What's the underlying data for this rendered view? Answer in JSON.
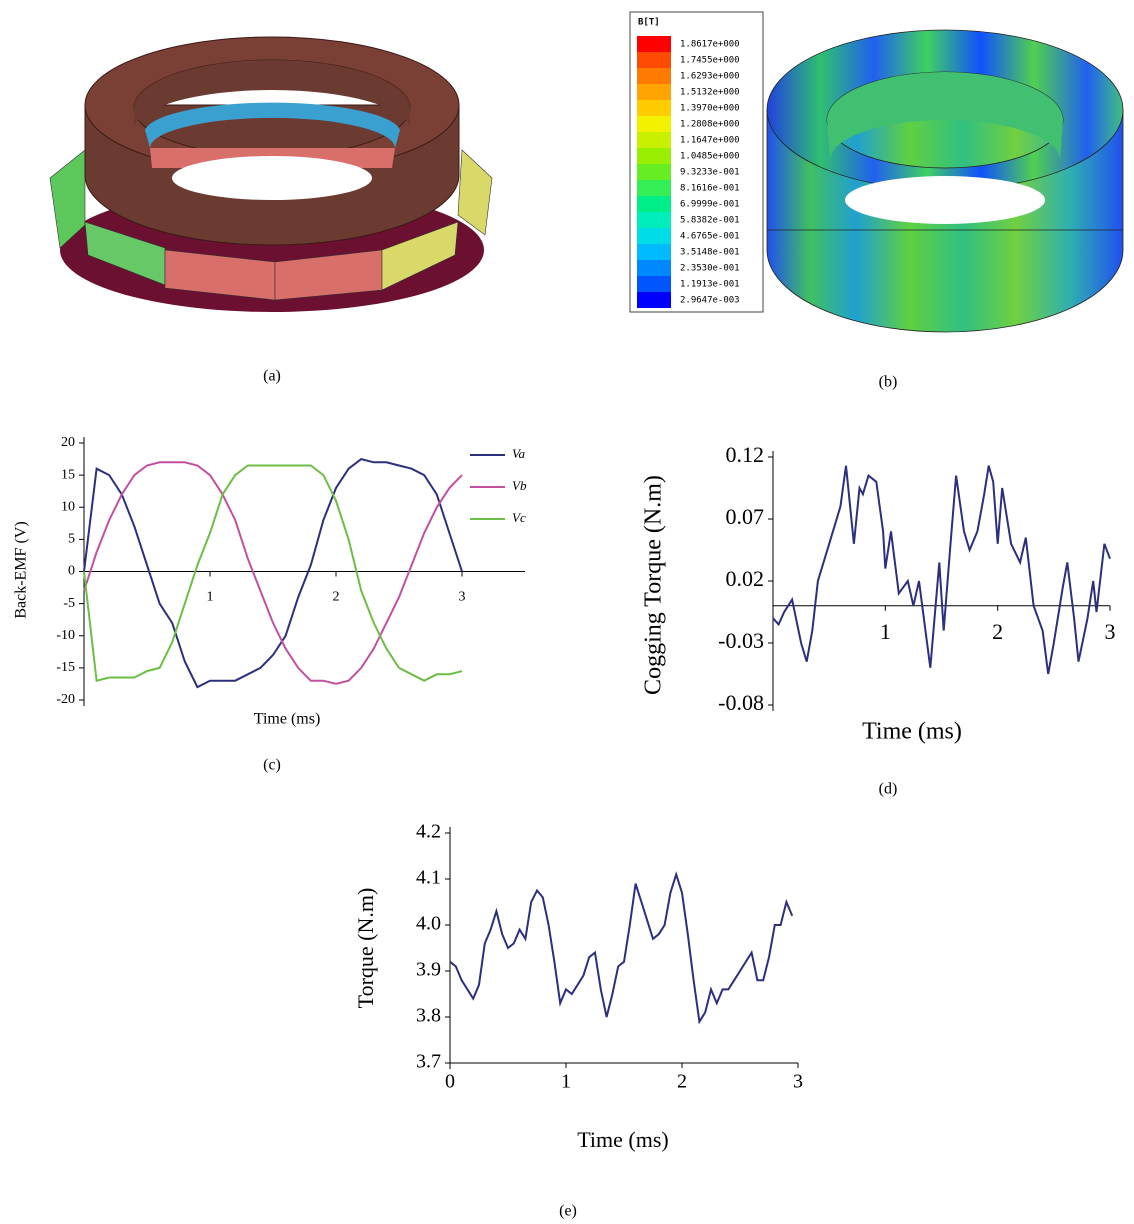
{
  "figures": {
    "a": {
      "caption": "(a)"
    },
    "b": {
      "caption": "(b)",
      "colorbar": {
        "title": "B[T]",
        "labels": [
          "1.8617e+000",
          "1.7455e+000",
          "1.6293e+000",
          "1.5132e+000",
          "1.3970e+000",
          "1.2808e+000",
          "1.1647e+000",
          "1.0485e+000",
          "9.3233e-001",
          "8.1616e-001",
          "6.9999e-001",
          "5.8382e-001",
          "4.6765e-001",
          "3.5148e-001",
          "2.3530e-001",
          "1.1913e-001",
          "2.9647e-003"
        ],
        "colors": [
          "#ff0000",
          "#ff4a00",
          "#ff7a00",
          "#ffa400",
          "#ffcc00",
          "#f2f200",
          "#c8f000",
          "#98f000",
          "#66ee22",
          "#33ee55",
          "#00ee88",
          "#00eebb",
          "#00dde6",
          "#00bbff",
          "#0088ff",
          "#0055ff",
          "#0000ff"
        ]
      }
    }
  },
  "chart_data": [
    {
      "type": "line",
      "caption": "(c)",
      "y_label": "Back-EMF (V)",
      "x_label": "Time (ms)",
      "x": [
        0,
        0.1,
        0.2,
        0.3,
        0.4,
        0.5,
        0.6,
        0.7,
        0.8,
        0.9,
        1.0,
        1.1,
        1.2,
        1.3,
        1.4,
        1.5,
        1.6,
        1.7,
        1.8,
        1.9,
        2.0,
        2.1,
        2.2,
        2.3,
        2.4,
        2.5,
        2.6,
        2.7,
        2.8,
        2.9,
        3.0
      ],
      "series": [
        {
          "name": "Va",
          "color": "#2b2f7e",
          "values": [
            0,
            16,
            15,
            12,
            7,
            1,
            -5,
            -8,
            -14,
            -18,
            -17,
            -17,
            -17,
            -16,
            -15,
            -13,
            -10,
            -4,
            1,
            8,
            13,
            16,
            17.5,
            17,
            17,
            16.5,
            16,
            15,
            12,
            6,
            0
          ]
        },
        {
          "name": "Vb",
          "color": "#c2509e",
          "values": [
            -3,
            3,
            8,
            12,
            15,
            16.5,
            17,
            17,
            17,
            16.5,
            15,
            12,
            8,
            2,
            -3,
            -8,
            -12,
            -15,
            -17,
            -17,
            -17.5,
            -17,
            -15,
            -12,
            -8,
            -4,
            1,
            6,
            10,
            13,
            15
          ]
        },
        {
          "name": "Vc",
          "color": "#6cbe45",
          "values": [
            0,
            -17,
            -16.5,
            -16.5,
            -16.5,
            -15.5,
            -15,
            -11,
            -5,
            1,
            6,
            12,
            15,
            16.5,
            16.5,
            16.5,
            16.5,
            16.5,
            16.5,
            15,
            11,
            5,
            -3,
            -8,
            -12,
            -15,
            -16,
            -17,
            -16,
            -16,
            -15.5
          ]
        }
      ],
      "xlim": [
        0,
        3.5
      ],
      "xticks": [
        1,
        2,
        3
      ],
      "ylim": [
        -20,
        20
      ],
      "yticks": [
        20,
        15,
        10,
        5,
        0,
        -5,
        -10,
        -15,
        -20
      ]
    },
    {
      "type": "line",
      "caption": "(d)",
      "y_label": "Cogging Torque (N.m)",
      "x_label": "Time (ms)",
      "color": "#2b2f7e",
      "x": [
        0,
        0.05,
        0.1,
        0.17,
        0.25,
        0.3,
        0.35,
        0.4,
        0.5,
        0.6,
        0.65,
        0.72,
        0.77,
        0.8,
        0.85,
        0.92,
        0.98,
        1.0,
        1.05,
        1.12,
        1.2,
        1.25,
        1.3,
        1.4,
        1.48,
        1.52,
        1.58,
        1.63,
        1.7,
        1.75,
        1.82,
        1.88,
        1.92,
        1.96,
        2.0,
        2.04,
        2.12,
        2.2,
        2.25,
        2.32,
        2.4,
        2.45,
        2.5,
        2.58,
        2.62,
        2.68,
        2.72,
        2.8,
        2.85,
        2.88,
        2.95,
        3.0
      ],
      "values": [
        -0.01,
        -0.015,
        -0.005,
        0.005,
        -0.03,
        -0.045,
        -0.02,
        0.02,
        0.05,
        0.08,
        0.113,
        0.05,
        0.095,
        0.09,
        0.105,
        0.1,
        0.06,
        0.03,
        0.06,
        0.01,
        0.02,
        0,
        0.02,
        -0.05,
        0.035,
        -0.02,
        0.05,
        0.105,
        0.06,
        0.045,
        0.06,
        0.09,
        0.113,
        0.1,
        0.05,
        0.095,
        0.05,
        0.035,
        0.055,
        0,
        -0.02,
        -0.055,
        -0.03,
        0.015,
        0.035,
        -0.01,
        -0.045,
        -0.01,
        0.02,
        -0.005,
        0.05,
        0.038
      ],
      "xlim": [
        0,
        3
      ],
      "xticks": [
        1,
        2,
        3
      ],
      "ylim": [
        -0.08,
        0.12
      ],
      "yticks": [
        0.12,
        0.07,
        0.02,
        -0.03,
        -0.08
      ]
    },
    {
      "type": "line",
      "caption": "(e)",
      "y_label": "Torque (N.m)",
      "x_label": "Time (ms)",
      "color": "#2b2f7e",
      "x": [
        0,
        0.05,
        0.1,
        0.2,
        0.25,
        0.3,
        0.35,
        0.4,
        0.45,
        0.5,
        0.55,
        0.6,
        0.65,
        0.7,
        0.75,
        0.8,
        0.85,
        0.9,
        0.95,
        1.0,
        1.05,
        1.1,
        1.15,
        1.2,
        1.25,
        1.3,
        1.35,
        1.4,
        1.45,
        1.5,
        1.55,
        1.6,
        1.65,
        1.7,
        1.75,
        1.8,
        1.85,
        1.9,
        1.95,
        2.0,
        2.05,
        2.1,
        2.15,
        2.2,
        2.25,
        2.3,
        2.35,
        2.4,
        2.45,
        2.5,
        2.6,
        2.65,
        2.7,
        2.75,
        2.8,
        2.85,
        2.9,
        2.95
      ],
      "values": [
        3.92,
        3.91,
        3.88,
        3.84,
        3.87,
        3.96,
        3.99,
        4.03,
        3.98,
        3.95,
        3.96,
        3.99,
        3.97,
        4.05,
        4.075,
        4.06,
        4.0,
        3.92,
        3.83,
        3.86,
        3.85,
        3.87,
        3.89,
        3.93,
        3.94,
        3.86,
        3.8,
        3.85,
        3.91,
        3.92,
        4.0,
        4.09,
        4.05,
        4.01,
        3.97,
        3.98,
        4.0,
        4.07,
        4.11,
        4.07,
        3.98,
        3.88,
        3.79,
        3.81,
        3.86,
        3.83,
        3.86,
        3.86,
        3.88,
        3.9,
        3.94,
        3.88,
        3.88,
        3.93,
        4.0,
        4.0,
        4.05,
        4.02
      ],
      "xlim": [
        0,
        3
      ],
      "xticks": [
        0,
        1,
        2,
        3
      ],
      "ylim": [
        3.7,
        4.2
      ],
      "yticks": [
        4.2,
        4.1,
        {
          "value": 4,
          "label": "4.0"
        },
        3.9,
        3.8,
        3.7
      ]
    }
  ]
}
